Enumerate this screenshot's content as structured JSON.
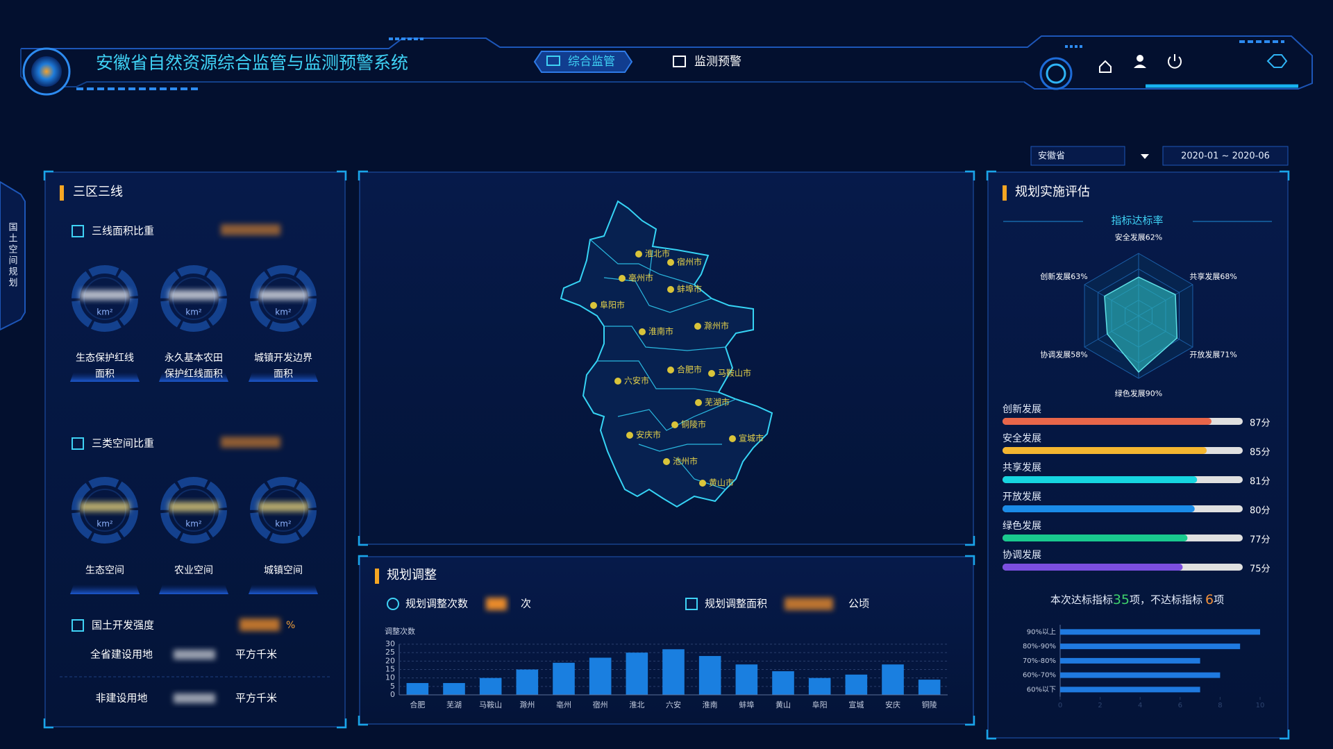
{
  "header": {
    "title": "安徽省自然资源综合监管与监测预警系统",
    "nav": [
      "综合监管",
      "监测预警"
    ]
  },
  "side_tab": "国土空间规划",
  "filters": {
    "region": "安徽省",
    "date_range": "2020-01 ~ 2020-06"
  },
  "left_panel": {
    "title": "三区三线",
    "line_ratio": {
      "title": "三线面积比重",
      "unit": "km²",
      "items": [
        [
          "生态保护红线",
          "面积"
        ],
        [
          "永久基本农田",
          "保护红线面积"
        ],
        [
          "城镇开发边界",
          "面积"
        ]
      ]
    },
    "space_ratio": {
      "title": "三类空间比重",
      "unit": "km²",
      "items": [
        "生态空间",
        "农业空间",
        "城镇空间"
      ]
    },
    "intensity": {
      "title": "国土开发强度",
      "unit": "%",
      "rows": [
        {
          "label": "全省建设用地",
          "unit": "平方千米"
        },
        {
          "label": "非建设用地",
          "unit": "平方千米"
        }
      ]
    }
  },
  "map": {
    "cities": [
      "淮北市",
      "宿州市",
      "亳州市",
      "蚌埠市",
      "阜阳市",
      "淮南市",
      "滁州市",
      "六安市",
      "合肥市",
      "马鞍山市",
      "芜湖市",
      "铜陵市",
      "安庆市",
      "宣城市",
      "池州市",
      "黄山市"
    ]
  },
  "adjust_panel": {
    "title": "规划调整",
    "count_label": "规划调整次数",
    "count_unit": "次",
    "area_label": "规划调整面积",
    "area_unit": "公顷"
  },
  "eval_panel": {
    "title": "规划实施评估",
    "radar_title": "指标达标率",
    "summary": {
      "prefix": "本次达标指标",
      "met": 35,
      "mid": "项，不达标指标",
      "unmet": 6,
      "suffix": "项"
    }
  },
  "chart_data": [
    {
      "type": "bar",
      "y_label": "调整次数",
      "categories": [
        "合肥",
        "芜湖",
        "马鞍山",
        "滁州",
        "亳州",
        "宿州",
        "淮北",
        "六安",
        "淮南",
        "蚌埠",
        "黄山",
        "阜阳",
        "宣城",
        "安庆",
        "铜陵"
      ],
      "values": [
        7,
        7,
        10,
        15,
        19,
        22,
        25,
        27,
        23,
        18,
        14,
        10,
        12,
        18,
        9
      ],
      "color": "#1a7fe0",
      "ylim": [
        0,
        30
      ],
      "yticks": [
        0,
        5,
        10,
        15,
        20,
        25,
        30
      ],
      "grid": true
    },
    {
      "type": "radar",
      "categories": [
        "安全发展",
        "共享发展",
        "开放发展",
        "绿色发展",
        "协调发展",
        "创新发展"
      ],
      "values": [
        62,
        68,
        71,
        90,
        58,
        63
      ],
      "value_labels": [
        "62%",
        "68%",
        "71%",
        "90%",
        "58%",
        "63%"
      ],
      "rlim": [
        0,
        100
      ],
      "color": "#2bb3b8"
    },
    {
      "type": "progress",
      "categories": [
        "创新发展",
        "安全发展",
        "共享发展",
        "开放发展",
        "绿色发展",
        "协调发展"
      ],
      "values": [
        87,
        85,
        81,
        80,
        77,
        75
      ],
      "value_labels": [
        "87分",
        "85分",
        "81分",
        "80分",
        "77分",
        "75分"
      ],
      "colors": [
        "#e8664a",
        "#f4b630",
        "#16d5e0",
        "#1a8be8",
        "#19c98e",
        "#7b4ee0"
      ],
      "xlim": [
        0,
        100
      ]
    },
    {
      "type": "hbar",
      "categories": [
        "90%以上",
        "80%-90%",
        "70%-80%",
        "60%-70%",
        "60%以下"
      ],
      "values": [
        10,
        9,
        7,
        8,
        7
      ],
      "color": "#1f7ae0",
      "xlim": [
        0,
        10
      ],
      "xticks": [
        0,
        2,
        4,
        6,
        8,
        10
      ]
    }
  ]
}
